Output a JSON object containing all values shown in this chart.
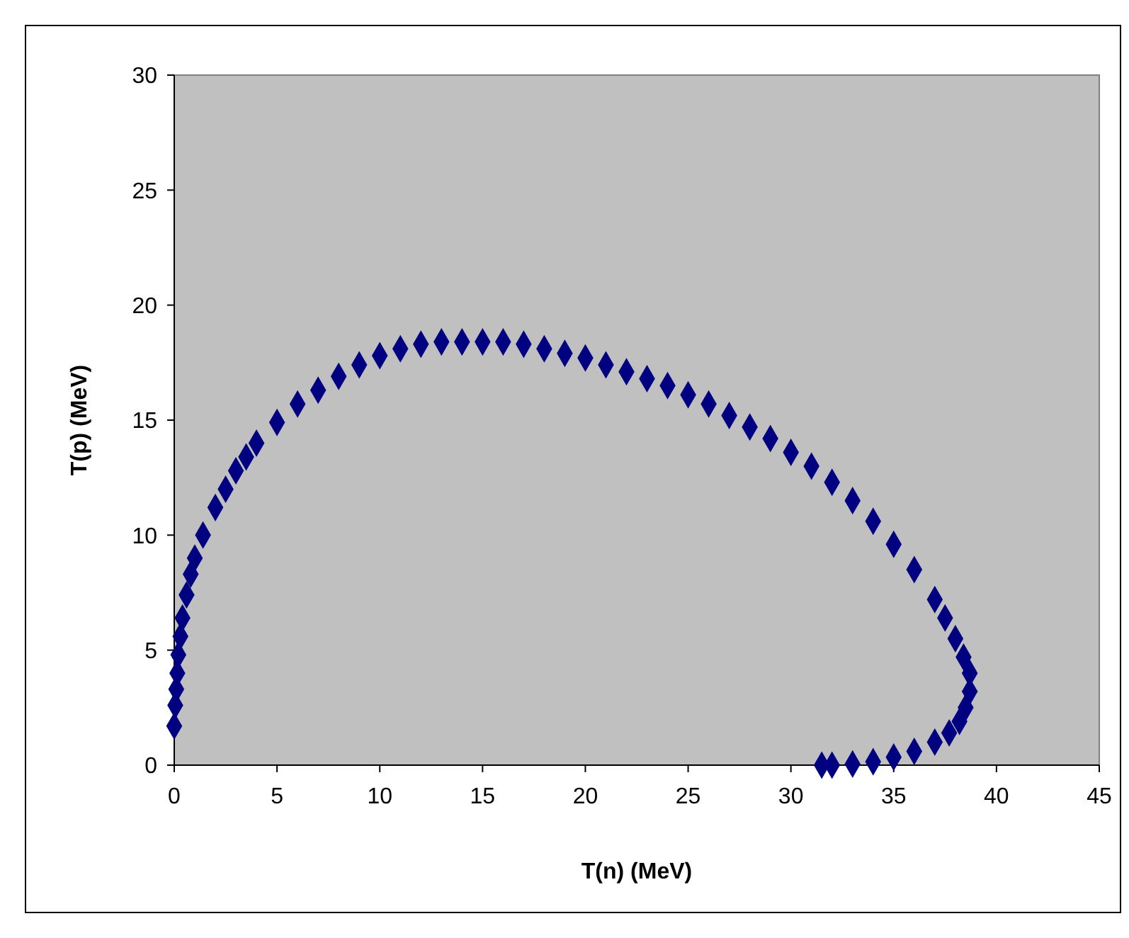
{
  "chart_data": {
    "type": "scatter",
    "xlabel": "T(n) (MeV)",
    "ylabel": "T(p) (MeV)",
    "xlim": [
      0,
      45
    ],
    "ylim": [
      0,
      30
    ],
    "xticks": [
      0,
      5,
      10,
      15,
      20,
      25,
      30,
      35,
      40,
      45
    ],
    "yticks": [
      0,
      5,
      10,
      15,
      20,
      25,
      30
    ],
    "grid": false,
    "marker": "diamond",
    "series": [
      {
        "color": "#000080",
        "x": [
          0,
          0.05,
          0.1,
          0.15,
          0.2,
          0.3,
          0.4,
          0.6,
          0.8,
          1,
          1.4,
          2,
          2.5,
          3,
          3.5,
          4,
          5,
          6,
          7,
          8,
          9,
          10,
          11,
          12,
          13,
          14,
          15,
          16,
          17,
          18,
          19,
          20,
          21,
          22,
          23,
          24,
          25,
          26,
          27,
          28,
          29,
          30,
          31,
          32,
          33,
          34,
          35,
          36,
          37,
          37.5,
          38,
          38.4,
          38.7,
          38.7,
          38.5,
          38.2,
          37.7,
          37,
          36,
          35,
          34,
          33,
          32,
          31.5
        ],
        "values": [
          1.7,
          2.6,
          3.3,
          4,
          4.8,
          5.6,
          6.4,
          7.4,
          8.3,
          9,
          10,
          11.2,
          12,
          12.8,
          13.4,
          14,
          14.9,
          15.7,
          16.3,
          16.9,
          17.4,
          17.8,
          18.1,
          18.3,
          18.4,
          18.4,
          18.4,
          18.4,
          18.3,
          18.1,
          17.9,
          17.7,
          17.4,
          17.1,
          16.8,
          16.5,
          16.1,
          15.7,
          15.2,
          14.7,
          14.2,
          13.6,
          13,
          12.3,
          11.5,
          10.6,
          9.6,
          8.5,
          7.2,
          6.4,
          5.5,
          4.7,
          4,
          3.2,
          2.5,
          1.9,
          1.4,
          1,
          0.6,
          0.35,
          0.15,
          0.05,
          0,
          0
        ]
      }
    ]
  }
}
